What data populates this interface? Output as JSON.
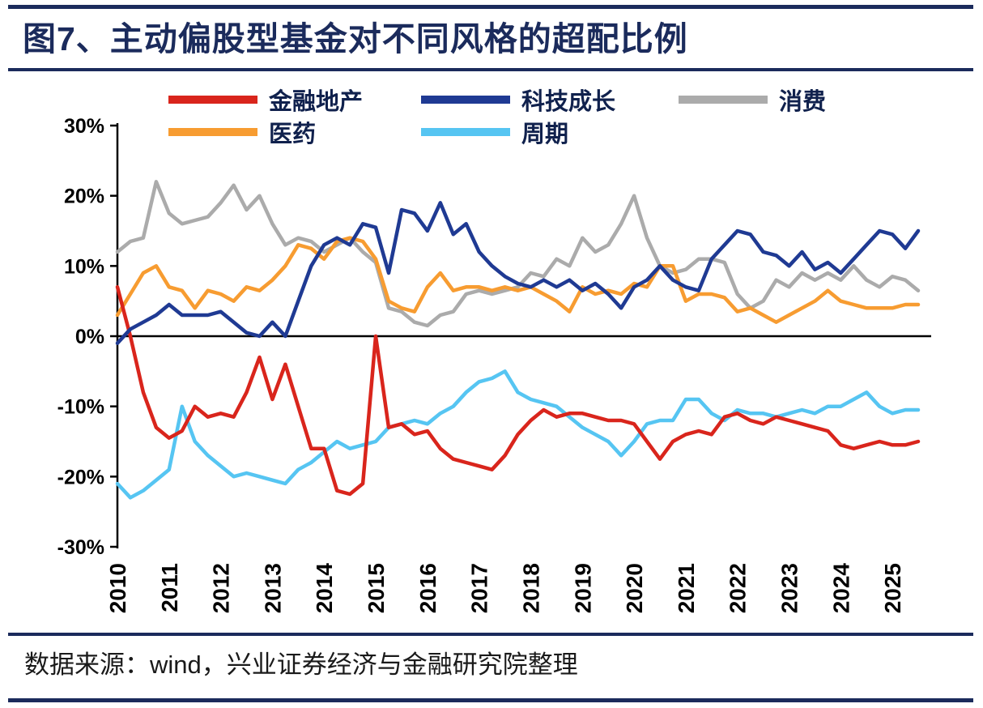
{
  "title": "图7、主动偏股型基金对不同风格的超配比例",
  "source": "数据来源：wind，兴业证券经济与金融研究院整理",
  "colors": {
    "accent_navy": "#1B2B5C",
    "red": "#D9251C",
    "blue": "#1F3A93",
    "gray": "#ABABAB",
    "orange": "#F79C31",
    "cyan": "#56C5F2"
  },
  "legend": {
    "rows": [
      [
        0,
        1,
        2
      ],
      [
        3,
        4
      ]
    ]
  },
  "chart_data": {
    "type": "line",
    "title": "主动偏股型基金对不同风格的超配比例",
    "xlabel": "",
    "ylabel": "",
    "x_start": 2010,
    "x_step": 0.25,
    "xlim": [
      2010,
      2025.75
    ],
    "ylim": [
      -30,
      30
    ],
    "grid": false,
    "legend_position": "top",
    "yticks": [
      "30%",
      "20%",
      "10%",
      "0%",
      "-10%",
      "-20%",
      "-30%"
    ],
    "ytick_values": [
      30,
      20,
      10,
      0,
      -10,
      -20,
      -30
    ],
    "xticks": [
      2010,
      2011,
      2012,
      2013,
      2014,
      2015,
      2016,
      2017,
      2018,
      2019,
      2020,
      2021,
      2022,
      2023,
      2024,
      2025
    ],
    "series": [
      {
        "name": "金融地产",
        "id": "financial-real-estate",
        "color": "#D9251C",
        "values": [
          7,
          0,
          -8,
          -13,
          -14.5,
          -13.5,
          -10,
          -11.5,
          -11,
          -11.5,
          -8,
          -3,
          -9,
          -4,
          -10,
          -16,
          -16,
          -22,
          -22.5,
          -21,
          0,
          -13,
          -12.5,
          -14,
          -13.5,
          -16,
          -17.5,
          -18,
          -18.5,
          -19,
          -17,
          -14,
          -12,
          -10.5,
          -11.5,
          -11,
          -11,
          -11.5,
          -12,
          -12,
          -12.5,
          -15,
          -17.5,
          -15,
          -14,
          -13.5,
          -14,
          -11.5,
          -11,
          -12,
          -12.5,
          -11.5,
          -12,
          -12.5,
          -13,
          -13.5,
          -15.5,
          -16,
          -15.5,
          -15,
          -15.5,
          -15.5,
          -15
        ]
      },
      {
        "name": "科技成长",
        "id": "tech-growth",
        "color": "#1F3A93",
        "values": [
          -1,
          1,
          2,
          3,
          4.5,
          3,
          3,
          3,
          3.5,
          2,
          0.5,
          0,
          2,
          0,
          5,
          10,
          13,
          14,
          13,
          16,
          15.5,
          9,
          18,
          17.5,
          15,
          19,
          14.5,
          16,
          12,
          10,
          8.5,
          7.5,
          7,
          8,
          7,
          8,
          6.5,
          7.5,
          6,
          4,
          7,
          8,
          10,
          8,
          7,
          6.5,
          11,
          13,
          15,
          14.5,
          12,
          11.5,
          10,
          12,
          9.5,
          10.5,
          9,
          11,
          13,
          15,
          14.5,
          12.5,
          15
        ]
      },
      {
        "name": "消费",
        "id": "consumer",
        "color": "#ABABAB",
        "values": [
          12,
          13.5,
          14,
          22,
          17.5,
          16,
          16.5,
          17,
          19,
          21.5,
          18,
          20,
          16,
          13,
          14,
          13.5,
          12,
          13,
          14,
          12,
          10.5,
          4,
          3.5,
          2,
          1.5,
          3,
          3.5,
          6,
          6.5,
          6,
          6.5,
          7,
          9,
          8.5,
          11,
          10,
          14,
          12,
          13,
          16,
          20,
          14,
          10,
          9,
          9.5,
          11,
          11,
          10.5,
          6,
          4,
          5,
          8,
          7,
          9,
          8,
          9,
          8,
          10,
          8,
          7,
          8.5,
          8,
          6.5
        ]
      },
      {
        "name": "医药",
        "id": "pharma",
        "color": "#F79C31",
        "values": [
          3,
          6,
          9,
          10,
          7,
          6.5,
          4,
          6.5,
          6,
          5,
          7,
          6.5,
          8,
          10,
          13,
          12.5,
          11,
          13.5,
          14,
          13.5,
          11,
          5,
          4,
          3.5,
          7,
          9,
          6.5,
          7,
          7,
          6.5,
          7,
          6.5,
          7,
          6,
          5,
          3.5,
          7,
          6,
          6.5,
          6,
          7.5,
          7,
          10,
          10,
          5,
          6,
          6,
          5.5,
          3.5,
          4,
          3,
          2,
          3,
          4,
          5,
          6.5,
          5,
          4.5,
          4,
          4,
          4,
          4.5,
          4.5
        ]
      },
      {
        "name": "周期",
        "id": "cyclical",
        "color": "#56C5F2",
        "values": [
          -21,
          -23,
          -22,
          -20.5,
          -19,
          -10,
          -15,
          -17,
          -18.5,
          -20,
          -19.5,
          -20,
          -20.5,
          -21,
          -19,
          -18,
          -16.5,
          -15,
          -16,
          -15.5,
          -15,
          -13,
          -12.5,
          -12,
          -12.5,
          -11,
          -10,
          -8,
          -6.5,
          -6,
          -5,
          -8,
          -9,
          -9.5,
          -10,
          -11.5,
          -13,
          -14,
          -15,
          -17,
          -15,
          -12.5,
          -12,
          -12,
          -9,
          -9,
          -11,
          -12,
          -10.5,
          -11,
          -11,
          -11.5,
          -11,
          -10.5,
          -11,
          -10,
          -10,
          -9,
          -8,
          -10,
          -11,
          -10.5,
          -10.5
        ]
      }
    ]
  }
}
